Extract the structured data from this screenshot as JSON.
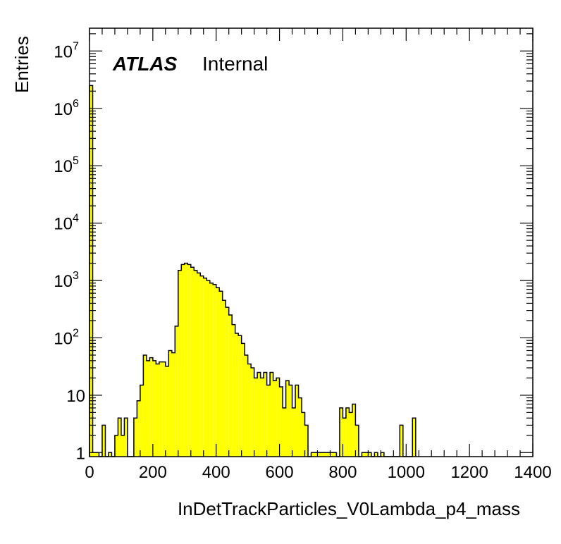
{
  "chart_data": {
    "type": "bar",
    "histogram": true,
    "xlabel": "InDetTrackParticles_V0Lambda_p4_mass",
    "ylabel": "Entries",
    "label_bold": "ATLAS",
    "label_text": "Internal",
    "xlim": [
      0,
      1400
    ],
    "ylim": [
      0.85,
      25000000
    ],
    "yscale": "log",
    "bin_width": 10,
    "fill_color": "#ffff00",
    "line_color": "#000000",
    "x_ticks": [
      0,
      200,
      400,
      600,
      800,
      1000,
      1200,
      1400
    ],
    "x_tick_labels": [
      "0",
      "200",
      "400",
      "600",
      "800",
      "1000",
      "1200",
      "1400"
    ],
    "y_ticks": [
      {
        "value": 1,
        "base": "1",
        "exp": ""
      },
      {
        "value": 10,
        "base": "10",
        "exp": ""
      },
      {
        "value": 100,
        "base": "10",
        "exp": "2"
      },
      {
        "value": 1000,
        "base": "10",
        "exp": "3"
      },
      {
        "value": 10000,
        "base": "10",
        "exp": "4"
      },
      {
        "value": 100000,
        "base": "10",
        "exp": "5"
      },
      {
        "value": 1000000,
        "base": "10",
        "exp": "6"
      },
      {
        "value": 10000000,
        "base": "10",
        "exp": "7"
      }
    ],
    "bins": [
      [
        0,
        2500000
      ],
      [
        10,
        1
      ],
      [
        20,
        1
      ],
      [
        40,
        3
      ],
      [
        60,
        1
      ],
      [
        80,
        2
      ],
      [
        90,
        4
      ],
      [
        100,
        2
      ],
      [
        110,
        4
      ],
      [
        140,
        4
      ],
      [
        150,
        8
      ],
      [
        160,
        15
      ],
      [
        170,
        50
      ],
      [
        180,
        40
      ],
      [
        190,
        45
      ],
      [
        200,
        40
      ],
      [
        210,
        35
      ],
      [
        220,
        38
      ],
      [
        230,
        38
      ],
      [
        240,
        32
      ],
      [
        250,
        60
      ],
      [
        260,
        55
      ],
      [
        270,
        160
      ],
      [
        280,
        1500
      ],
      [
        290,
        1900
      ],
      [
        300,
        2000
      ],
      [
        310,
        1900
      ],
      [
        320,
        1700
      ],
      [
        330,
        1500
      ],
      [
        340,
        1350
      ],
      [
        350,
        1200
      ],
      [
        360,
        1100
      ],
      [
        370,
        1000
      ],
      [
        380,
        900
      ],
      [
        390,
        850
      ],
      [
        400,
        750
      ],
      [
        410,
        650
      ],
      [
        420,
        450
      ],
      [
        430,
        340
      ],
      [
        440,
        250
      ],
      [
        450,
        170
      ],
      [
        460,
        120
      ],
      [
        470,
        110
      ],
      [
        480,
        80
      ],
      [
        490,
        50
      ],
      [
        500,
        35
      ],
      [
        510,
        30
      ],
      [
        520,
        20
      ],
      [
        530,
        25
      ],
      [
        540,
        20
      ],
      [
        550,
        25
      ],
      [
        560,
        15
      ],
      [
        570,
        25
      ],
      [
        580,
        18
      ],
      [
        590,
        20
      ],
      [
        600,
        14
      ],
      [
        610,
        6
      ],
      [
        620,
        18
      ],
      [
        630,
        15
      ],
      [
        640,
        6
      ],
      [
        650,
        15
      ],
      [
        660,
        9
      ],
      [
        670,
        5
      ],
      [
        680,
        3
      ],
      [
        690,
        0
      ],
      [
        700,
        1
      ],
      [
        710,
        1
      ],
      [
        720,
        1
      ],
      [
        730,
        1
      ],
      [
        740,
        1
      ],
      [
        750,
        1
      ],
      [
        760,
        1
      ],
      [
        770,
        1
      ],
      [
        790,
        6
      ],
      [
        800,
        4
      ],
      [
        810,
        6
      ],
      [
        820,
        5
      ],
      [
        830,
        7
      ],
      [
        840,
        3
      ],
      [
        850,
        0
      ],
      [
        860,
        1
      ],
      [
        870,
        1
      ],
      [
        880,
        1
      ],
      [
        890,
        0
      ],
      [
        900,
        1
      ],
      [
        910,
        0
      ],
      [
        920,
        1
      ],
      [
        930,
        0
      ],
      [
        940,
        0
      ],
      [
        950,
        0
      ],
      [
        960,
        0
      ],
      [
        970,
        0
      ],
      [
        980,
        3
      ],
      [
        990,
        0
      ],
      [
        1000,
        0
      ],
      [
        1010,
        0
      ],
      [
        1020,
        4
      ]
    ]
  }
}
